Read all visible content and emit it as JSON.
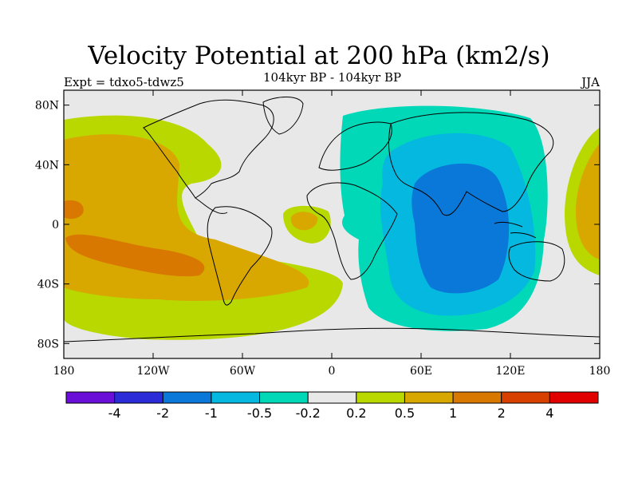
{
  "title": "Velocity Potential at 200 hPa (km2/s)",
  "subtitle": "104kyr BP - 104kyr BP",
  "left_label": "Expt = tdxo5-tdwz5",
  "right_label": "JJA",
  "map": {
    "lon_range": [
      -180,
      180
    ],
    "lat_range": [
      -90,
      90
    ],
    "x_ticks": [
      {
        "lon": -180,
        "label": "180"
      },
      {
        "lon": -120,
        "label": "120W"
      },
      {
        "lon": -60,
        "label": "60W"
      },
      {
        "lon": 0,
        "label": "0"
      },
      {
        "lon": 60,
        "label": "60E"
      },
      {
        "lon": 120,
        "label": "120E"
      },
      {
        "lon": 180,
        "label": "180"
      }
    ],
    "y_ticks": [
      {
        "lat": 80,
        "label": "80N"
      },
      {
        "lat": 40,
        "label": "40N"
      },
      {
        "lat": 0,
        "label": "0"
      },
      {
        "lat": -40,
        "label": "40S"
      },
      {
        "lat": -80,
        "label": "80S"
      }
    ]
  },
  "colorbar": {
    "colors": [
      "#6a0fd8",
      "#2b2bd8",
      "#0a78d8",
      "#05b8e0",
      "#00d8b8",
      "#e8e8e8",
      "#b8d800",
      "#d8a800",
      "#d87800",
      "#d84000",
      "#e00000"
    ],
    "labels": [
      "-4",
      "-2",
      "-1",
      "-0.5",
      "-0.2",
      "0.2",
      "0.5",
      "1",
      "2",
      "4"
    ]
  },
  "colors": {
    "background_band": "#e8e8e8",
    "coastline": "#000000"
  }
}
